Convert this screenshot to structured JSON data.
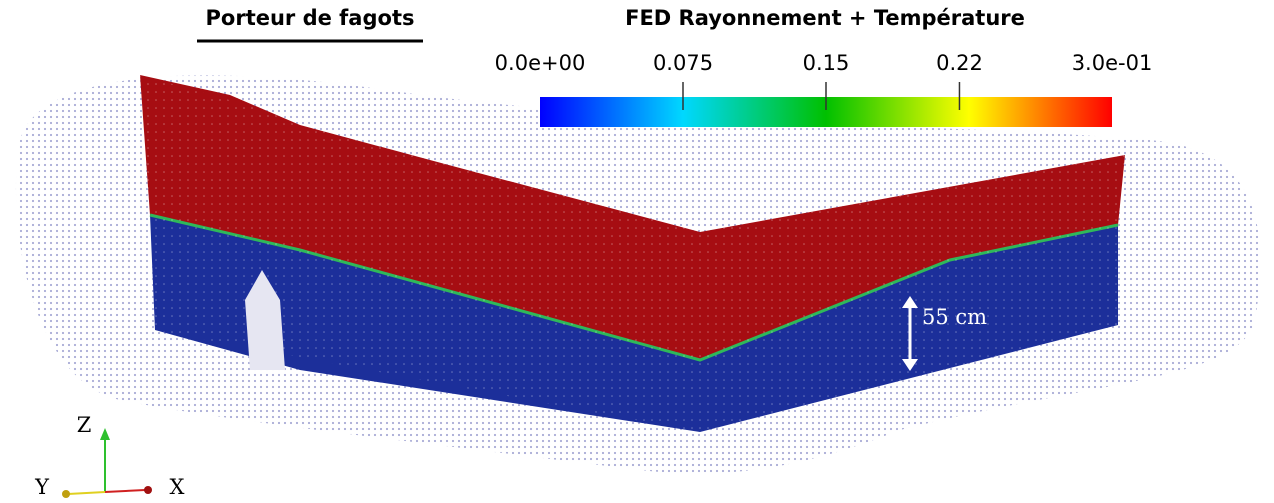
{
  "title": "Porteur de fagots",
  "colorbar": {
    "title": "FED Rayonnement + Température",
    "range": [
      {
        "value": 0,
        "label": "0.0e+00"
      },
      {
        "value": 0.3,
        "label": "3.0e-01"
      }
    ],
    "ticks": [
      0.075,
      0.15,
      0.22
    ]
  },
  "annotation": "55 cm",
  "axes": {
    "z": "Z",
    "y": "Y",
    "x": "X"
  }
}
